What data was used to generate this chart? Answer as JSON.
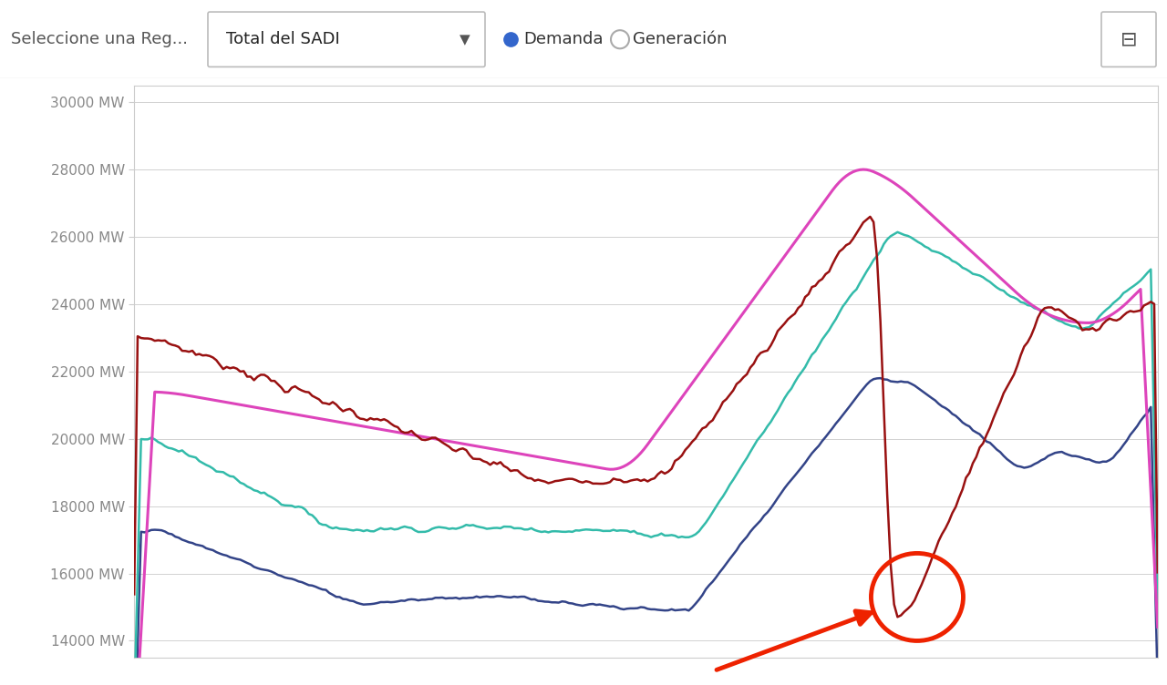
{
  "ylim": [
    13500,
    30500
  ],
  "xlim": [
    0,
    100
  ],
  "bg_color": "#ffffff",
  "grid_color": "#cccccc",
  "line_colors": {
    "red": "#991111",
    "magenta": "#dd44bb",
    "teal": "#33bbaa",
    "blue": "#334488"
  },
  "annotation_color": "#ee2200",
  "yticks": [
    14000,
    16000,
    18000,
    20000,
    22000,
    24000,
    26000,
    28000,
    30000
  ]
}
